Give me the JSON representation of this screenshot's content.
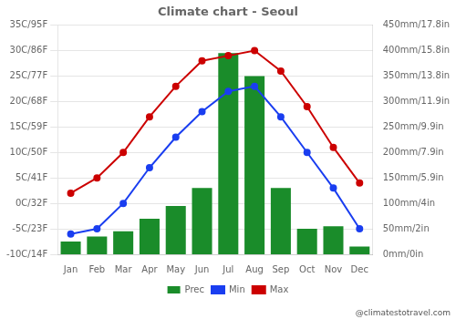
{
  "chart_data": {
    "type": "bar",
    "title": "Climate chart - Seoul",
    "categories": [
      "Jan",
      "Feb",
      "Mar",
      "Apr",
      "May",
      "Jun",
      "Jul",
      "Aug",
      "Sep",
      "Oct",
      "Nov",
      "Dec"
    ],
    "series": [
      {
        "name": "Prec",
        "type": "bar",
        "color": "#1a8c2a",
        "axis": "y2",
        "values": [
          25,
          35,
          45,
          70,
          95,
          130,
          395,
          350,
          130,
          50,
          55,
          15
        ]
      },
      {
        "name": "Min",
        "type": "line",
        "color": "#1a3ef0",
        "marker": "circle",
        "values": [
          -6,
          -5,
          0,
          7,
          13,
          18,
          22,
          23,
          17,
          10,
          3,
          -5
        ]
      },
      {
        "name": "Max",
        "type": "line",
        "color": "#cc0000",
        "marker": "circle",
        "values": [
          2,
          5,
          10,
          17,
          23,
          28,
          29,
          30,
          26,
          19,
          11,
          4
        ]
      }
    ],
    "ylim": [
      -10,
      35
    ],
    "yticks": [
      {
        "value": -10,
        "label": "-10C/14F"
      },
      {
        "value": -5,
        "label": "-5C/23F"
      },
      {
        "value": 0,
        "label": "0C/32F"
      },
      {
        "value": 5,
        "label": "5C/41F"
      },
      {
        "value": 10,
        "label": "10C/50F"
      },
      {
        "value": 15,
        "label": "15C/59F"
      },
      {
        "value": 20,
        "label": "20C/68F"
      },
      {
        "value": 25,
        "label": "25C/77F"
      },
      {
        "value": 30,
        "label": "30C/86F"
      },
      {
        "value": 35,
        "label": "35C/95F"
      }
    ],
    "y2lim": [
      0,
      450
    ],
    "y2ticks": [
      {
        "value": 0,
        "label": "0mm/0in"
      },
      {
        "value": 50,
        "label": "50mm/2in"
      },
      {
        "value": 100,
        "label": "100mm/4in"
      },
      {
        "value": 150,
        "label": "150mm/5.9in"
      },
      {
        "value": 200,
        "label": "200mm/7.9in"
      },
      {
        "value": 250,
        "label": "250mm/9.9in"
      },
      {
        "value": 300,
        "label": "300mm/11.9in"
      },
      {
        "value": 350,
        "label": "350mm/13.8in"
      },
      {
        "value": 400,
        "label": "400mm/15.8in"
      },
      {
        "value": 450,
        "label": "450mm/17.8in"
      }
    ],
    "grid": true,
    "legend": "bottom",
    "annotations": [
      "@climatestotravel.com"
    ]
  }
}
